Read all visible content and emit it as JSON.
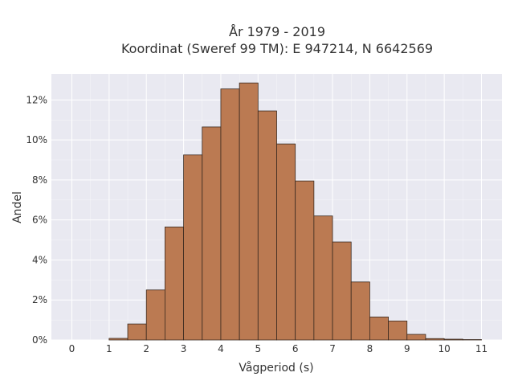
{
  "chart_data": {
    "type": "bar",
    "title_line1": "År 1979 - 2019",
    "title_line2": "Koordinat (Sweref 99 TM): E 947214, N 6642569",
    "xlabel": "Vågperiod (s)",
    "ylabel": "Andel",
    "xlim": [
      -0.55,
      11.55
    ],
    "ylim": [
      0,
      13.3
    ],
    "x_ticks": [
      0,
      1,
      2,
      3,
      4,
      5,
      6,
      7,
      8,
      9,
      10,
      11
    ],
    "y_ticks": [
      0,
      2,
      4,
      6,
      8,
      10,
      12
    ],
    "y_tick_labels": [
      "0%",
      "2%",
      "4%",
      "6%",
      "8%",
      "10%",
      "12%"
    ],
    "bin_width": 0.5,
    "bins_start": [
      1.0,
      1.5,
      2.0,
      2.5,
      3.0,
      3.5,
      4.0,
      4.5,
      5.0,
      5.5,
      6.0,
      6.5,
      7.0,
      7.5,
      8.0,
      8.5,
      9.0,
      9.5,
      10.0,
      10.5
    ],
    "values": [
      0.08,
      0.8,
      2.5,
      5.65,
      9.25,
      10.65,
      12.55,
      12.85,
      11.45,
      9.8,
      7.95,
      6.2,
      4.9,
      2.9,
      1.15,
      0.95,
      0.28,
      0.07,
      0.04,
      0.02
    ],
    "grid": true,
    "colors": {
      "bar_fill": "#bb7a52",
      "bar_stroke": "#3a2a20",
      "plot_background": "#e9e9f1",
      "grid": "#ffffff"
    }
  }
}
